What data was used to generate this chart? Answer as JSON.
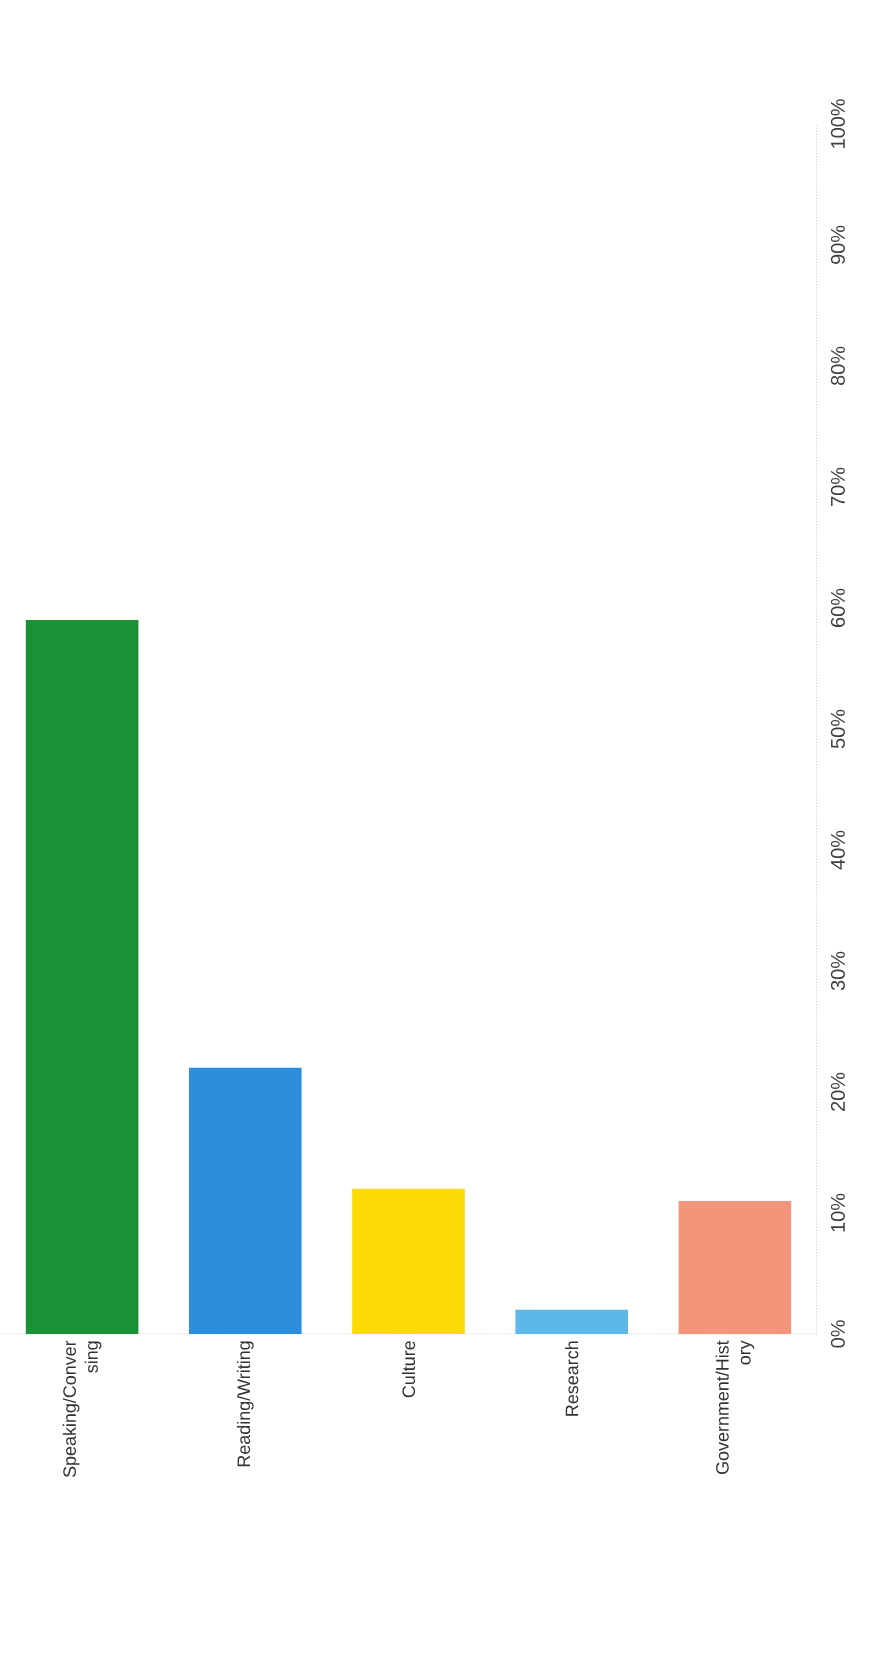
{
  "chart_data": {
    "type": "bar",
    "categories": [
      "Speaking/Conver sing",
      "Reading/Writing",
      "Culture",
      "Research",
      "Government/Hist ory"
    ],
    "values": [
      59,
      22,
      12,
      2,
      11
    ],
    "colors": [
      "#1a9135",
      "#2d8fdb",
      "#fcdb05",
      "#5db8e8",
      "#f2957a"
    ],
    "ylim": [
      0,
      100
    ],
    "yticks": [
      {
        "value": 0,
        "label": "0%"
      },
      {
        "value": 10,
        "label": "10%"
      },
      {
        "value": 20,
        "label": "20%"
      },
      {
        "value": 30,
        "label": "30%"
      },
      {
        "value": 40,
        "label": "40%"
      },
      {
        "value": 50,
        "label": "50%"
      },
      {
        "value": 60,
        "label": "60%"
      },
      {
        "value": 70,
        "label": "70%"
      },
      {
        "value": 80,
        "label": "80%"
      },
      {
        "value": 90,
        "label": "90%"
      },
      {
        "value": 100,
        "label": "100%"
      }
    ],
    "grid": false
  }
}
